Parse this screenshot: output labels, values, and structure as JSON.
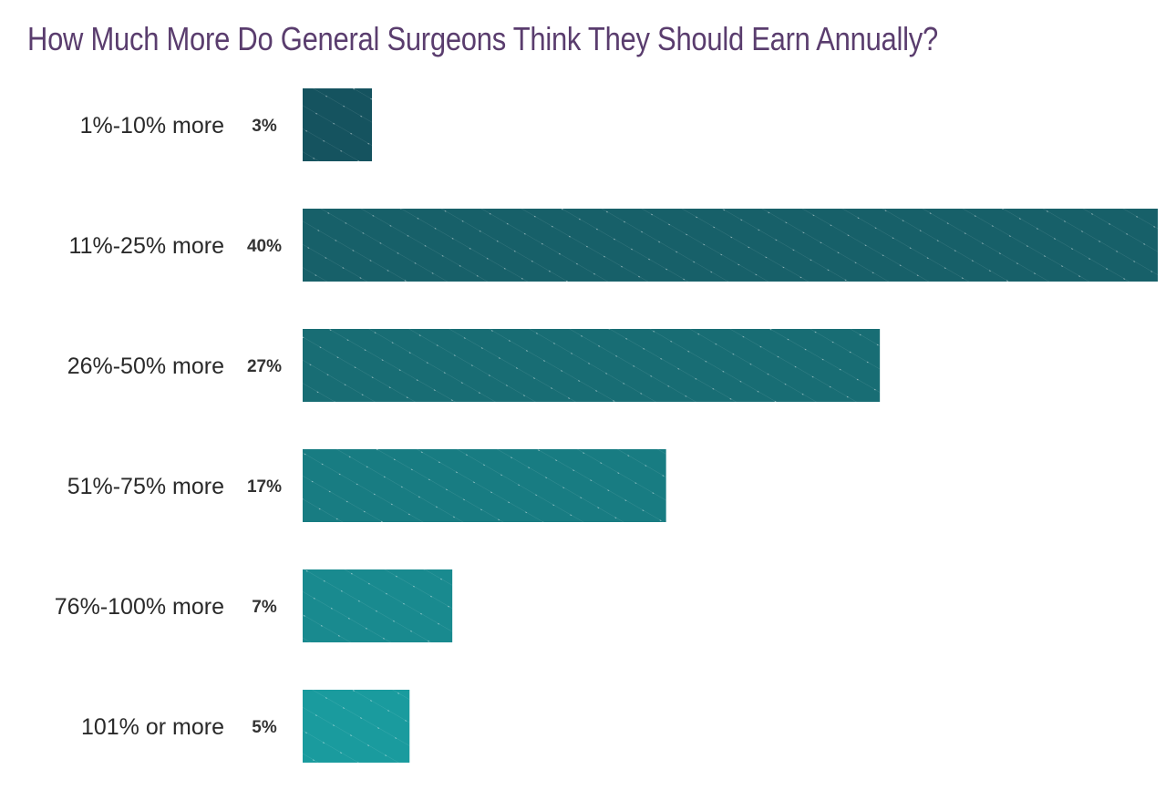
{
  "chart_data": {
    "type": "bar",
    "orientation": "horizontal",
    "title": "How Much More Do General Surgeons Think They Should Earn Annually?",
    "categories": [
      "1%-10% more",
      "11%-25% more",
      "26%-50% more",
      "51%-75% more",
      "76%-100% more",
      "101% or more"
    ],
    "values": [
      3,
      40,
      27,
      17,
      7,
      5
    ],
    "value_labels": [
      "3%",
      "40%",
      "27%",
      "17%",
      "7%",
      "5%"
    ],
    "colors": [
      "#15535f",
      "#176069",
      "#186d74",
      "#187c82",
      "#198a8f",
      "#1a9b9e"
    ],
    "xlim": [
      0,
      40
    ],
    "xlabel": "",
    "ylabel": "",
    "grid": false
  }
}
